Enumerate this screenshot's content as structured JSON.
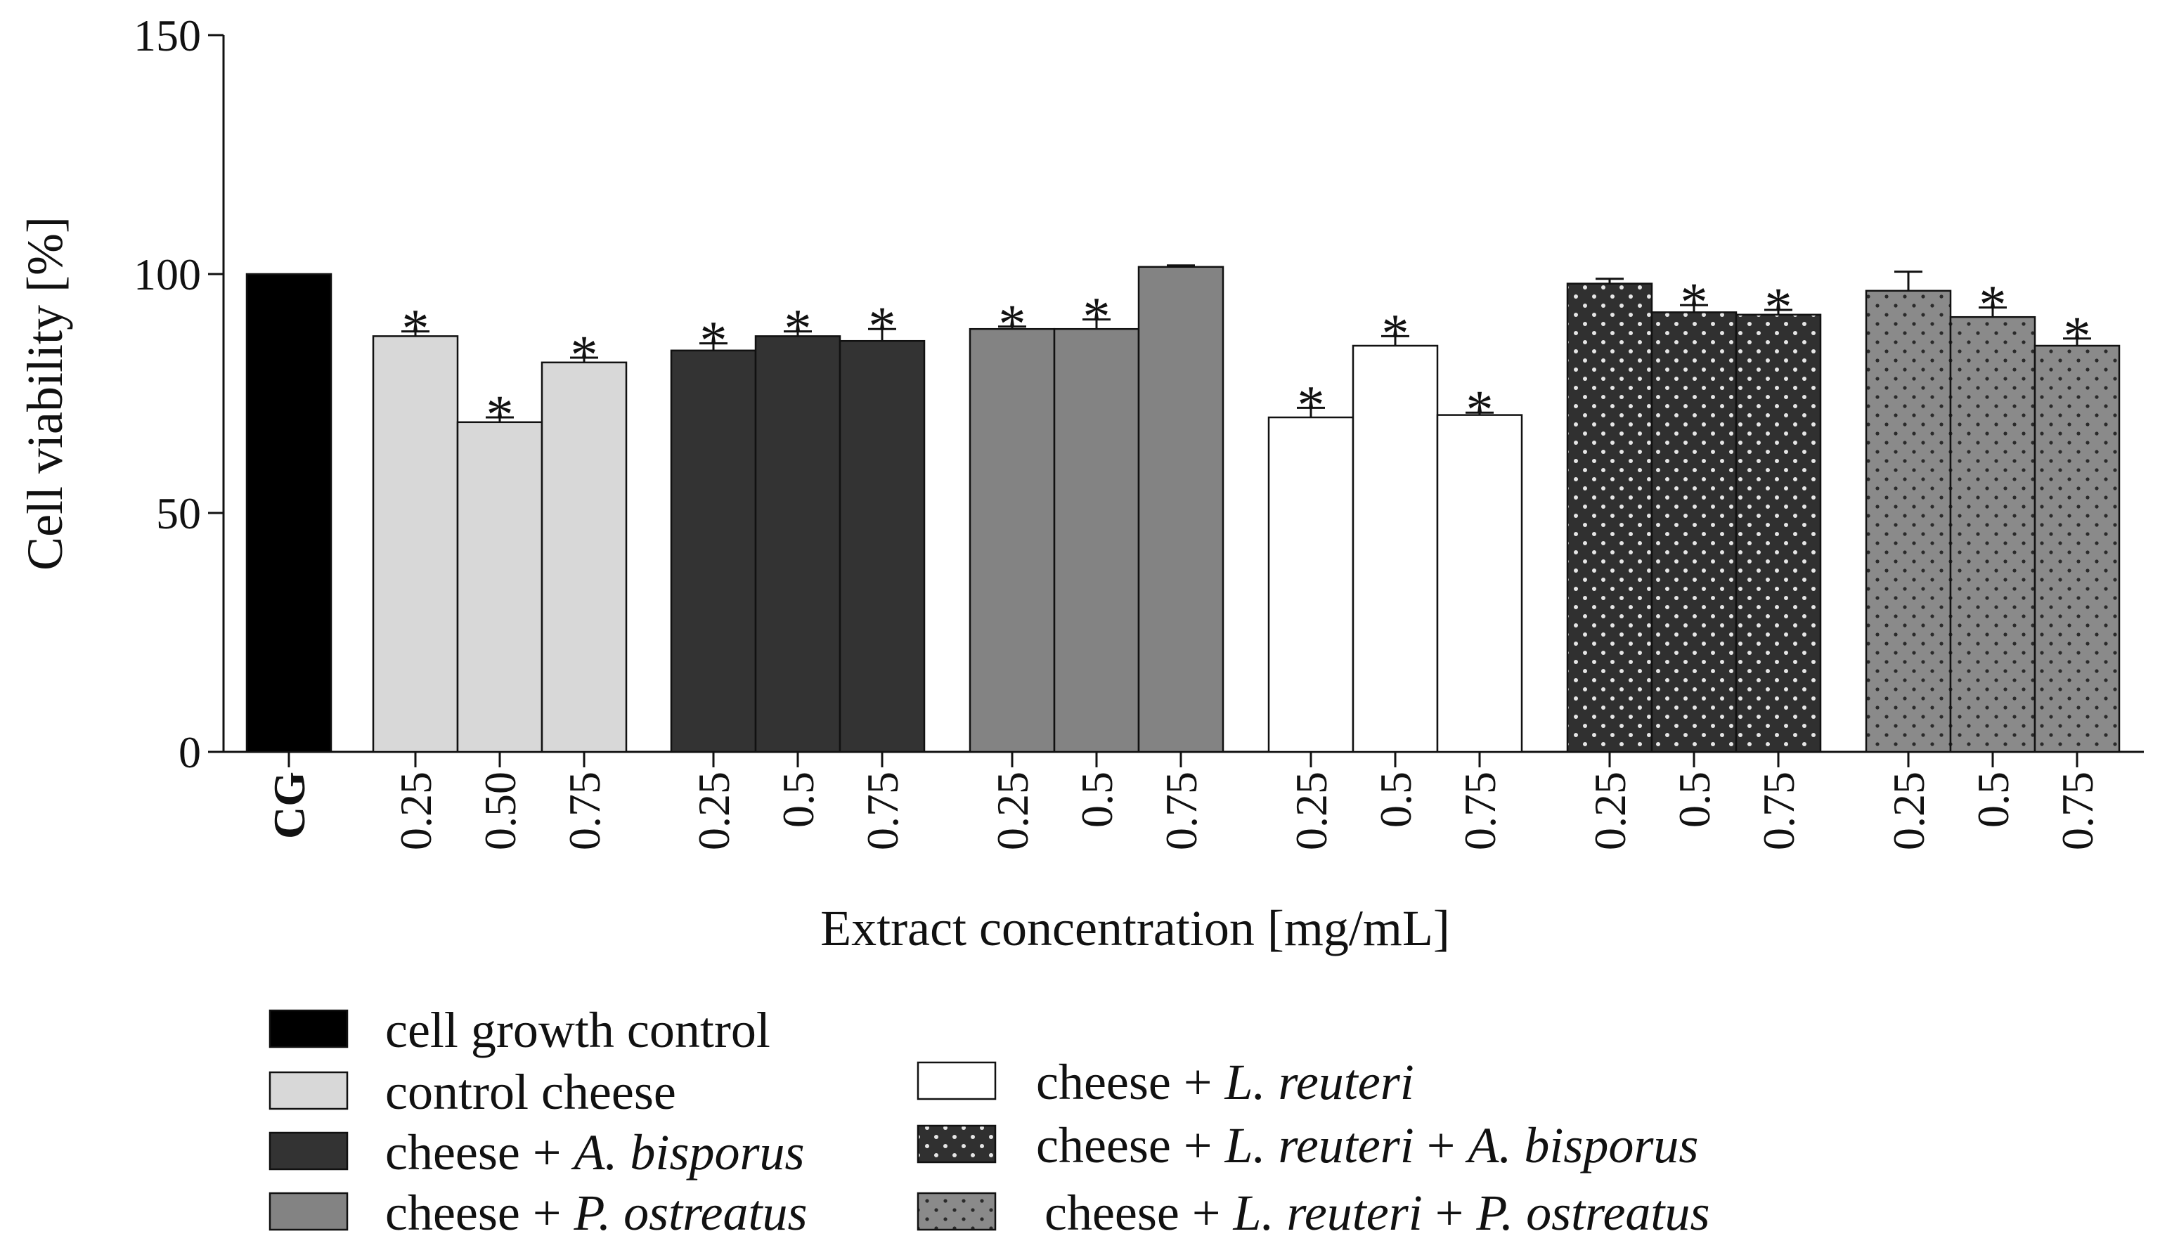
{
  "chart_data": {
    "type": "bar",
    "title": "",
    "ylabel": "Cell viability [%]",
    "xlabel": "Extract concentration [mg/mL]",
    "ylim": [
      0,
      150
    ],
    "yticks": [
      0,
      50,
      100,
      150
    ],
    "significance_marker": "*",
    "groups": [
      {
        "name": "cell growth control",
        "color": "#000000",
        "pattern": "none",
        "bars": [
          {
            "label": "CG",
            "value": 100,
            "error": 0,
            "sig": false
          }
        ]
      },
      {
        "name": "control cheese",
        "color": "#d8d8d8",
        "pattern": "none",
        "bars": [
          {
            "label": "0.25",
            "value": 87,
            "error": 1,
            "sig": true
          },
          {
            "label": "0.50",
            "value": 69,
            "error": 1,
            "sig": true
          },
          {
            "label": "0.75",
            "value": 81.5,
            "error": 1,
            "sig": true
          }
        ]
      },
      {
        "name": "cheese + A. bisporus",
        "color": "#333333",
        "pattern": "none",
        "bars": [
          {
            "label": "0.25",
            "value": 84,
            "error": 1.5,
            "sig": true
          },
          {
            "label": "0.5",
            "value": 87,
            "error": 1,
            "sig": true
          },
          {
            "label": "0.75",
            "value": 86,
            "error": 2.5,
            "sig": true
          }
        ]
      },
      {
        "name": "cheese + P. ostreatus",
        "color": "#838383",
        "pattern": "none",
        "bars": [
          {
            "label": "0.25",
            "value": 88.5,
            "error": 0.5,
            "sig": true
          },
          {
            "label": "0.5",
            "value": 88.5,
            "error": 2,
            "sig": true
          },
          {
            "label": "0.75",
            "value": 101.5,
            "error": 0.3,
            "sig": false
          }
        ]
      },
      {
        "name": "cheese + L. reuteri",
        "color": "#ffffff",
        "pattern": "none",
        "bars": [
          {
            "label": "0.25",
            "value": 70,
            "error": 2,
            "sig": true
          },
          {
            "label": "0.5",
            "value": 85,
            "error": 2,
            "sig": true
          },
          {
            "label": "0.75",
            "value": 70.5,
            "error": 0.5,
            "sig": true
          }
        ]
      },
      {
        "name": "cheese + L. reuteri + A. bisporus",
        "color": "#303030",
        "pattern": "dots-light",
        "bars": [
          {
            "label": "0.25",
            "value": 98,
            "error": 1,
            "sig": false
          },
          {
            "label": "0.5",
            "value": 92,
            "error": 1.5,
            "sig": true
          },
          {
            "label": "0.75",
            "value": 91.5,
            "error": 1,
            "sig": true
          }
        ]
      },
      {
        "name": "cheese + L. reuteri + P. ostreatus",
        "color": "#8a8a8a",
        "pattern": "dots-dark",
        "bars": [
          {
            "label": "0.25",
            "value": 96.5,
            "error": 4,
            "sig": false
          },
          {
            "label": "0.5",
            "value": 91,
            "error": 2,
            "sig": true
          },
          {
            "label": "0.75",
            "value": 85,
            "error": 1.5,
            "sig": true
          }
        ]
      }
    ],
    "legend": [
      {
        "plain": "cell growth control",
        "italic": "",
        "tail": ""
      },
      {
        "plain": "control cheese",
        "italic": "",
        "tail": ""
      },
      {
        "plain": "cheese + ",
        "italic": "A. bisporus",
        "tail": ""
      },
      {
        "plain": "cheese + ",
        "italic": "P. ostreatus",
        "tail": ""
      },
      {
        "plain": "cheese + ",
        "italic": "L. reuteri",
        "tail": ""
      },
      {
        "plain": "cheese + ",
        "italic": "L. reuteri",
        "tail": " + ",
        "italic2": "A. bisporus"
      },
      {
        "plain": "cheese + ",
        "italic": "L. reuteri",
        "tail": " + ",
        "italic2": "P. ostreatus"
      }
    ]
  }
}
